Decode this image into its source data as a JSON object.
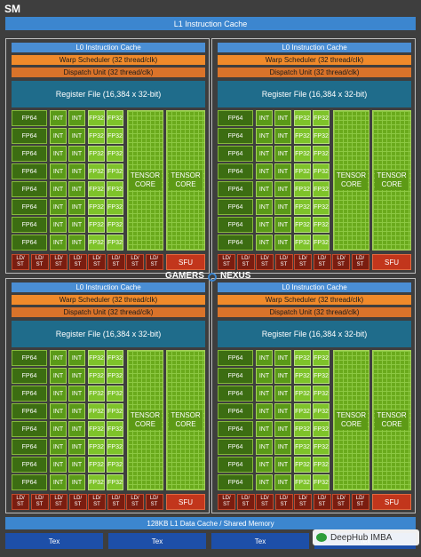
{
  "sm_label": "SM",
  "l1_instruction_cache": "L1 Instruction Cache",
  "l0_instruction_cache": "L0 Instruction Cache",
  "warp_scheduler": "Warp Scheduler (32 thread/clk)",
  "dispatch_unit": "Dispatch Unit (32 thread/clk)",
  "register_file": "Register File (16,384 x 32-bit)",
  "fp64_label": "FP64",
  "int_label": "INT",
  "fp32_label": "FP32",
  "tensor_line1": "TENSOR",
  "tensor_line2": "CORE",
  "ldst_line1": "LD/",
  "ldst_line2": "ST",
  "sfu_label": "SFU",
  "l1_data_cache": "128KB L1 Data Cache / Shared Memory",
  "tex_label": "Tex",
  "watermark_left": "GAMERS",
  "watermark_right": "NEXUS",
  "wechat_badge": "DeepHub IMBA",
  "colors": {
    "frame": "#3e3e3e",
    "cache_blue": "#3c86cf",
    "warp_orange": "#f08a2a",
    "register_teal": "#1f6c8b",
    "fp64_green": "#3c6d12",
    "int_green": "#5a9a18",
    "fp32_green": "#7ec32a",
    "ldst_red": "#7a1d10",
    "sfu_red": "#c2361c",
    "tex_blue": "#1d4fa8"
  }
}
